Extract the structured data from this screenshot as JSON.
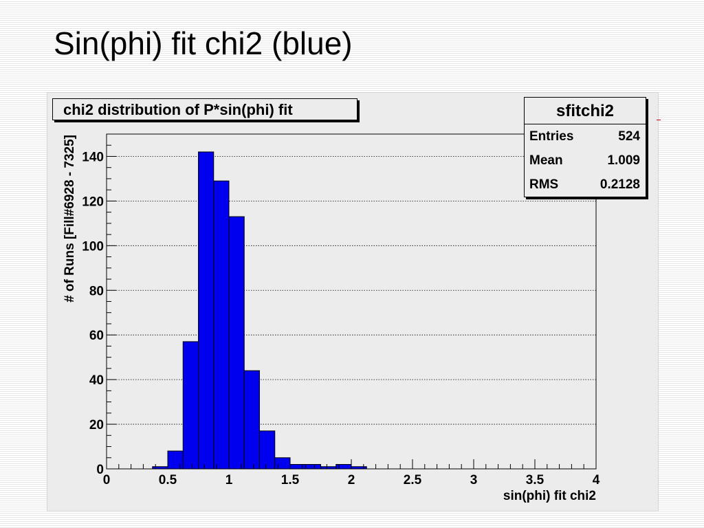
{
  "slide": {
    "title": "Sin(phi) fit chi2 (blue)"
  },
  "chart_data": {
    "type": "bar",
    "title": "chi2 distribution of P*sin(phi) fit",
    "xlabel": "sin(phi) fit chi2",
    "ylabel": "# of Runs [Fill#6928 - 7325]",
    "xlim": [
      0,
      4
    ],
    "ylim": [
      0,
      150
    ],
    "bin_width": 0.125,
    "bin_edges_start": 0,
    "values": [
      0,
      0,
      0,
      1,
      8,
      57,
      142,
      129,
      113,
      44,
      17,
      5,
      2,
      2,
      1,
      2,
      1,
      0,
      0,
      0,
      0,
      0,
      0,
      0,
      0,
      0,
      0,
      0,
      0,
      0,
      0,
      0
    ],
    "x_ticks": [
      "0",
      "0.5",
      "1",
      "1.5",
      "2",
      "2.5",
      "3",
      "3.5",
      "4"
    ],
    "y_ticks": [
      "0",
      "20",
      "40",
      "60",
      "80",
      "100",
      "120",
      "140"
    ],
    "grid": "horizontal dotted",
    "colors": {
      "bars": "#0000ee",
      "background": "#ececec"
    },
    "stats_box": {
      "name": "sfitchi2",
      "entries_label": "Entries",
      "entries_value": "524",
      "mean_label": "Mean",
      "mean_value": "1.009",
      "rms_label": "RMS",
      "rms_value": "0.2128",
      "placement": "top-right"
    }
  }
}
